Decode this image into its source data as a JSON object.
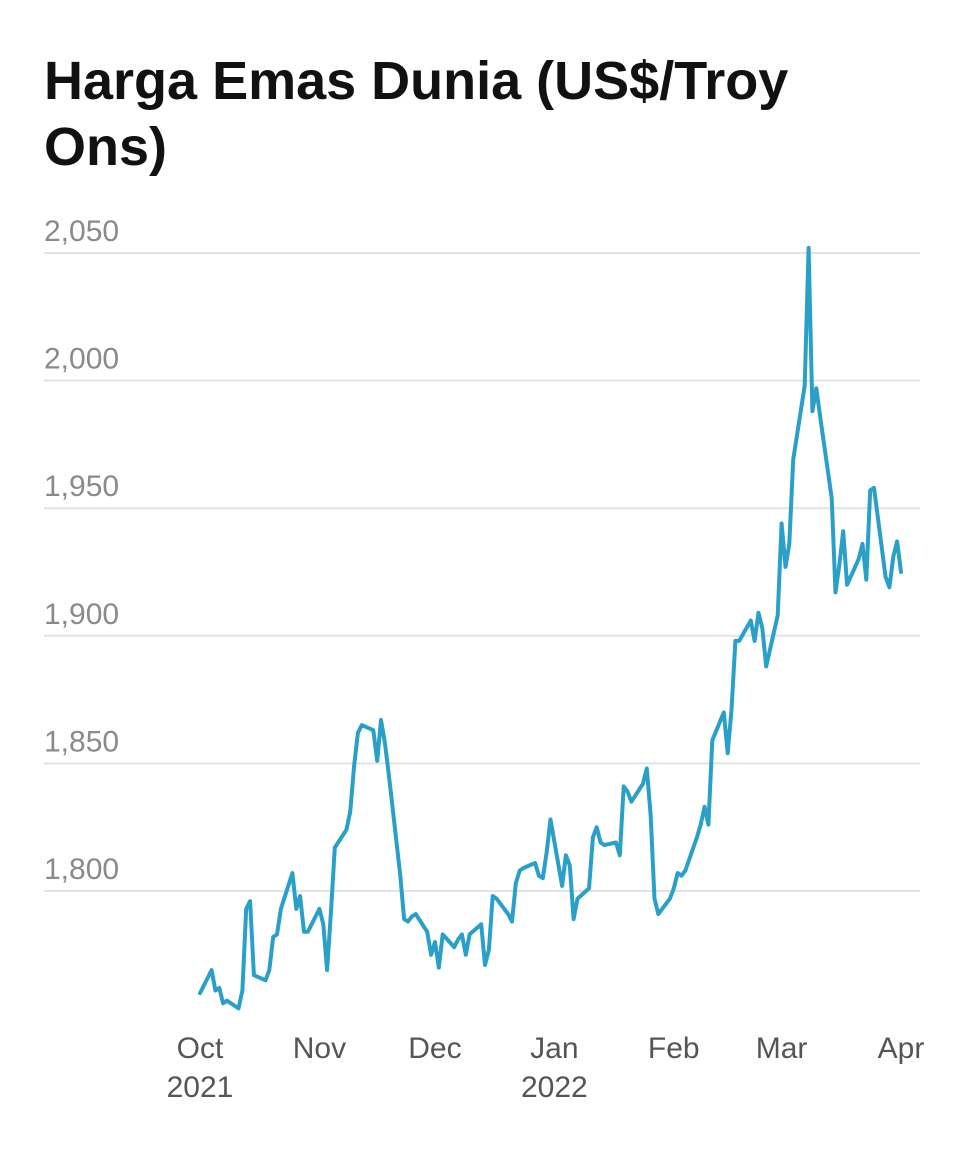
{
  "chart_data": {
    "type": "line",
    "title": "Harga Emas Dunia (US$/Troy Ons)",
    "xlabel": "",
    "ylabel": "",
    "ylim": [
      1750,
      2050
    ],
    "y_ticks": [
      "2,050",
      "2,000",
      "1,950",
      "1,900",
      "1,850",
      "1,800"
    ],
    "y_tick_values": [
      2050,
      2000,
      1950,
      1900,
      1850,
      1800
    ],
    "grid": true,
    "line_color": "#2aa0c9",
    "x_ticks": [
      {
        "date": "2021-10-01",
        "label": "Oct",
        "sublabel": "2021"
      },
      {
        "date": "2021-11-01",
        "label": "Nov",
        "sublabel": ""
      },
      {
        "date": "2021-12-01",
        "label": "Dec",
        "sublabel": ""
      },
      {
        "date": "2022-01-01",
        "label": "Jan",
        "sublabel": "2022"
      },
      {
        "date": "2022-02-01",
        "label": "Feb",
        "sublabel": ""
      },
      {
        "date": "2022-03-01",
        "label": "Mar",
        "sublabel": ""
      },
      {
        "date": "2022-04-01",
        "label": "Apr",
        "sublabel": ""
      }
    ],
    "series": [
      {
        "points": [
          [
            "2021-10-01",
            1760
          ],
          [
            "2021-10-04",
            1769
          ],
          [
            "2021-10-05",
            1761
          ],
          [
            "2021-10-06",
            1762
          ],
          [
            "2021-10-07",
            1756
          ],
          [
            "2021-10-08",
            1757
          ],
          [
            "2021-10-11",
            1754
          ],
          [
            "2021-10-12",
            1761
          ],
          [
            "2021-10-13",
            1793
          ],
          [
            "2021-10-14",
            1796
          ],
          [
            "2021-10-15",
            1767
          ],
          [
            "2021-10-18",
            1765
          ],
          [
            "2021-10-19",
            1769
          ],
          [
            "2021-10-20",
            1782
          ],
          [
            "2021-10-21",
            1783
          ],
          [
            "2021-10-22",
            1793
          ],
          [
            "2021-10-25",
            1807
          ],
          [
            "2021-10-26",
            1793
          ],
          [
            "2021-10-27",
            1798
          ],
          [
            "2021-10-28",
            1784
          ],
          [
            "2021-10-29",
            1784
          ],
          [
            "2021-11-01",
            1793
          ],
          [
            "2021-11-02",
            1787
          ],
          [
            "2021-11-03",
            1769
          ],
          [
            "2021-11-04",
            1792
          ],
          [
            "2021-11-05",
            1817
          ],
          [
            "2021-11-08",
            1824
          ],
          [
            "2021-11-09",
            1831
          ],
          [
            "2021-11-10",
            1849
          ],
          [
            "2021-11-11",
            1862
          ],
          [
            "2021-11-12",
            1865
          ],
          [
            "2021-11-15",
            1863
          ],
          [
            "2021-11-16",
            1851
          ],
          [
            "2021-11-17",
            1867
          ],
          [
            "2021-11-18",
            1858
          ],
          [
            "2021-11-19",
            1846
          ],
          [
            "2021-11-22",
            1806
          ],
          [
            "2021-11-23",
            1789
          ],
          [
            "2021-11-24",
            1788
          ],
          [
            "2021-11-25",
            1790
          ],
          [
            "2021-11-26",
            1791
          ],
          [
            "2021-11-29",
            1784
          ],
          [
            "2021-11-30",
            1775
          ],
          [
            "2021-12-01",
            1780
          ],
          [
            "2021-12-02",
            1770
          ],
          [
            "2021-12-03",
            1783
          ],
          [
            "2021-12-06",
            1778
          ],
          [
            "2021-12-07",
            1781
          ],
          [
            "2021-12-08",
            1783
          ],
          [
            "2021-12-09",
            1775
          ],
          [
            "2021-12-10",
            1783
          ],
          [
            "2021-12-13",
            1787
          ],
          [
            "2021-12-14",
            1771
          ],
          [
            "2021-12-15",
            1777
          ],
          [
            "2021-12-16",
            1798
          ],
          [
            "2021-12-17",
            1797
          ],
          [
            "2021-12-20",
            1791
          ],
          [
            "2021-12-21",
            1788
          ],
          [
            "2021-12-22",
            1803
          ],
          [
            "2021-12-23",
            1808
          ],
          [
            "2021-12-24",
            1809
          ],
          [
            "2021-12-27",
            1811
          ],
          [
            "2021-12-28",
            1806
          ],
          [
            "2021-12-29",
            1805
          ],
          [
            "2021-12-30",
            1815
          ],
          [
            "2021-12-31",
            1828
          ],
          [
            "2022-01-03",
            1802
          ],
          [
            "2022-01-04",
            1814
          ],
          [
            "2022-01-05",
            1810
          ],
          [
            "2022-01-06",
            1789
          ],
          [
            "2022-01-07",
            1797
          ],
          [
            "2022-01-10",
            1801
          ],
          [
            "2022-01-11",
            1821
          ],
          [
            "2022-01-12",
            1825
          ],
          [
            "2022-01-13",
            1819
          ],
          [
            "2022-01-14",
            1818
          ],
          [
            "2022-01-17",
            1819
          ],
          [
            "2022-01-18",
            1814
          ],
          [
            "2022-01-19",
            1841
          ],
          [
            "2022-01-20",
            1839
          ],
          [
            "2022-01-21",
            1835
          ],
          [
            "2022-01-24",
            1842
          ],
          [
            "2022-01-25",
            1848
          ],
          [
            "2022-01-26",
            1830
          ],
          [
            "2022-01-27",
            1797
          ],
          [
            "2022-01-28",
            1791
          ],
          [
            "2022-01-31",
            1797
          ],
          [
            "2022-02-01",
            1801
          ],
          [
            "2022-02-02",
            1807
          ],
          [
            "2022-02-03",
            1806
          ],
          [
            "2022-02-04",
            1808
          ],
          [
            "2022-02-07",
            1821
          ],
          [
            "2022-02-08",
            1826
          ],
          [
            "2022-02-09",
            1833
          ],
          [
            "2022-02-10",
            1826
          ],
          [
            "2022-02-11",
            1859
          ],
          [
            "2022-02-14",
            1870
          ],
          [
            "2022-02-15",
            1854
          ],
          [
            "2022-02-16",
            1871
          ],
          [
            "2022-02-17",
            1898
          ],
          [
            "2022-02-18",
            1898
          ],
          [
            "2022-02-21",
            1906
          ],
          [
            "2022-02-22",
            1898
          ],
          [
            "2022-02-23",
            1909
          ],
          [
            "2022-02-24",
            1903
          ],
          [
            "2022-02-25",
            1888
          ],
          [
            "2022-02-28",
            1908
          ],
          [
            "2022-03-01",
            1944
          ],
          [
            "2022-03-02",
            1927
          ],
          [
            "2022-03-03",
            1936
          ],
          [
            "2022-03-04",
            1969
          ],
          [
            "2022-03-07",
            1998
          ],
          [
            "2022-03-08",
            2052
          ],
          [
            "2022-03-09",
            1988
          ],
          [
            "2022-03-10",
            1997
          ],
          [
            "2022-03-11",
            1986
          ],
          [
            "2022-03-14",
            1954
          ],
          [
            "2022-03-15",
            1917
          ],
          [
            "2022-03-16",
            1928
          ],
          [
            "2022-03-17",
            1941
          ],
          [
            "2022-03-18",
            1920
          ],
          [
            "2022-03-21",
            1930
          ],
          [
            "2022-03-22",
            1936
          ],
          [
            "2022-03-23",
            1922
          ],
          [
            "2022-03-24",
            1957
          ],
          [
            "2022-03-25",
            1958
          ],
          [
            "2022-03-28",
            1923
          ],
          [
            "2022-03-29",
            1919
          ],
          [
            "2022-03-30",
            1931
          ],
          [
            "2022-03-31",
            1937
          ],
          [
            "2022-04-01",
            1925
          ]
        ]
      }
    ]
  }
}
